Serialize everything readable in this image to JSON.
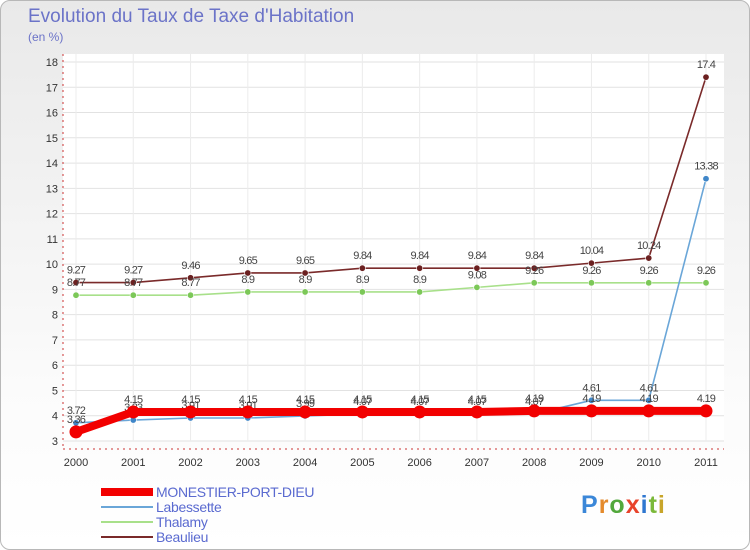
{
  "header": {
    "title": "Evolution du Taux de Taxe d'Habitation",
    "unit": "(en %)"
  },
  "logo": {
    "text": "Proxiti",
    "colors": [
      "#3b87d8",
      "#e48a2c",
      "#52a83c",
      "#e8432b",
      "#2f77d0",
      "#7bb93a",
      "#c8a52a"
    ]
  },
  "chart_data": {
    "type": "line",
    "categories": [
      "2000",
      "2001",
      "2002",
      "2003",
      "2004",
      "2005",
      "2006",
      "2007",
      "2008",
      "2009",
      "2010",
      "2011"
    ],
    "ylim": [
      3,
      18
    ],
    "yticks": [
      "3",
      "4",
      "5",
      "6",
      "7",
      "8",
      "9",
      "10",
      "11",
      "12",
      "13",
      "14",
      "15",
      "16",
      "17",
      "18"
    ],
    "series": [
      {
        "name": "Beaulieu",
        "color": "#7a2a2a",
        "marker": "#6b2020",
        "values": [
          9.27,
          9.27,
          9.46,
          9.65,
          9.65,
          9.84,
          9.84,
          9.84,
          9.84,
          10.04,
          10.24,
          17.4
        ],
        "labels": [
          "9.27",
          "9.27",
          "9.46",
          "9.65",
          "9.65",
          "9.84",
          "9.84",
          "9.84",
          "9.84",
          "10.04",
          "10.24",
          "17.4"
        ]
      },
      {
        "name": "Thalamy",
        "color": "#a8e08a",
        "marker": "#7cc858",
        "values": [
          8.77,
          8.77,
          8.77,
          8.9,
          8.9,
          8.9,
          8.9,
          9.08,
          9.26,
          9.26,
          9.26,
          9.26
        ],
        "labels": [
          "8.77",
          "8.77",
          "8.77",
          "8.9",
          "8.9",
          "8.9",
          "8.9",
          "9.08",
          "9.26",
          "9.26",
          "9.26",
          "9.26"
        ]
      },
      {
        "name": "Labessette",
        "color": "#6aa6d8",
        "marker": "#3f86c8",
        "values": [
          3.72,
          3.83,
          3.91,
          3.91,
          3.99,
          4.07,
          4.07,
          4.07,
          4.07,
          4.61,
          4.61,
          13.38
        ],
        "labels": [
          "3.72",
          "3.83",
          "3.91",
          "3.91",
          "3.99",
          "4.07",
          "4.07",
          "4.07",
          "4.07",
          "4.61",
          "4.61",
          "13.38"
        ]
      },
      {
        "name": "MONESTIER-PORT-DIEU",
        "color": "#f20000",
        "marker": "#f20000",
        "values": [
          3.36,
          4.15,
          4.15,
          4.15,
          4.15,
          4.15,
          4.15,
          4.15,
          4.19,
          4.19,
          4.19,
          4.19
        ],
        "labels": [
          "3.36",
          "4.15",
          "4.15",
          "4.15",
          "4.15",
          "4.15",
          "4.15",
          "4.15",
          "4.19",
          "4.19",
          "4.19",
          "4.19"
        ]
      }
    ]
  },
  "legend": [
    {
      "name": "MONESTIER-PORT-DIEU",
      "color": "#f20000"
    },
    {
      "name": "Labessette",
      "color": "#6aa6d8"
    },
    {
      "name": "Thalamy",
      "color": "#a8e08a"
    },
    {
      "name": "Beaulieu",
      "color": "#7a2a2a"
    }
  ]
}
